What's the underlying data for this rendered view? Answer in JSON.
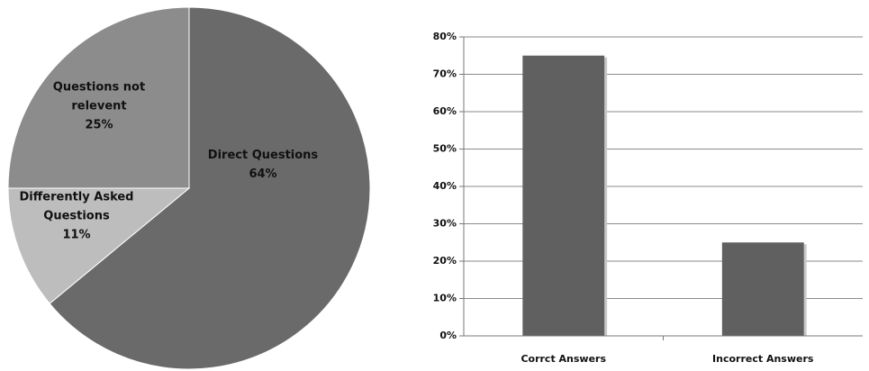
{
  "chart_data": [
    {
      "type": "pie",
      "slices": [
        {
          "label_lines": [
            "Direct Questions"
          ],
          "value": 64,
          "value_label": "64%",
          "color": "#6a6a6a"
        },
        {
          "label_lines": [
            "Differently Asked",
            "Questions"
          ],
          "value": 11,
          "value_label": "11%",
          "color": "#bdbdbd"
        },
        {
          "label_lines": [
            "Questions not",
            "relevent"
          ],
          "value": 25,
          "value_label": "25%",
          "color": "#8c8c8c"
        }
      ],
      "start_angle_deg": 0,
      "direction": "clockwise"
    },
    {
      "type": "bar",
      "categories": [
        "Corrct Answers",
        "Incorrect Answers"
      ],
      "values": [
        75,
        25
      ],
      "ylim": [
        0,
        80
      ],
      "yticks": [
        0,
        10,
        20,
        30,
        40,
        50,
        60,
        70,
        80
      ],
      "ytick_labels": [
        "0%",
        "10%",
        "20%",
        "30%",
        "40%",
        "50%",
        "60%",
        "70%",
        "80%"
      ],
      "grid": true,
      "bar_color": "#606060"
    }
  ]
}
